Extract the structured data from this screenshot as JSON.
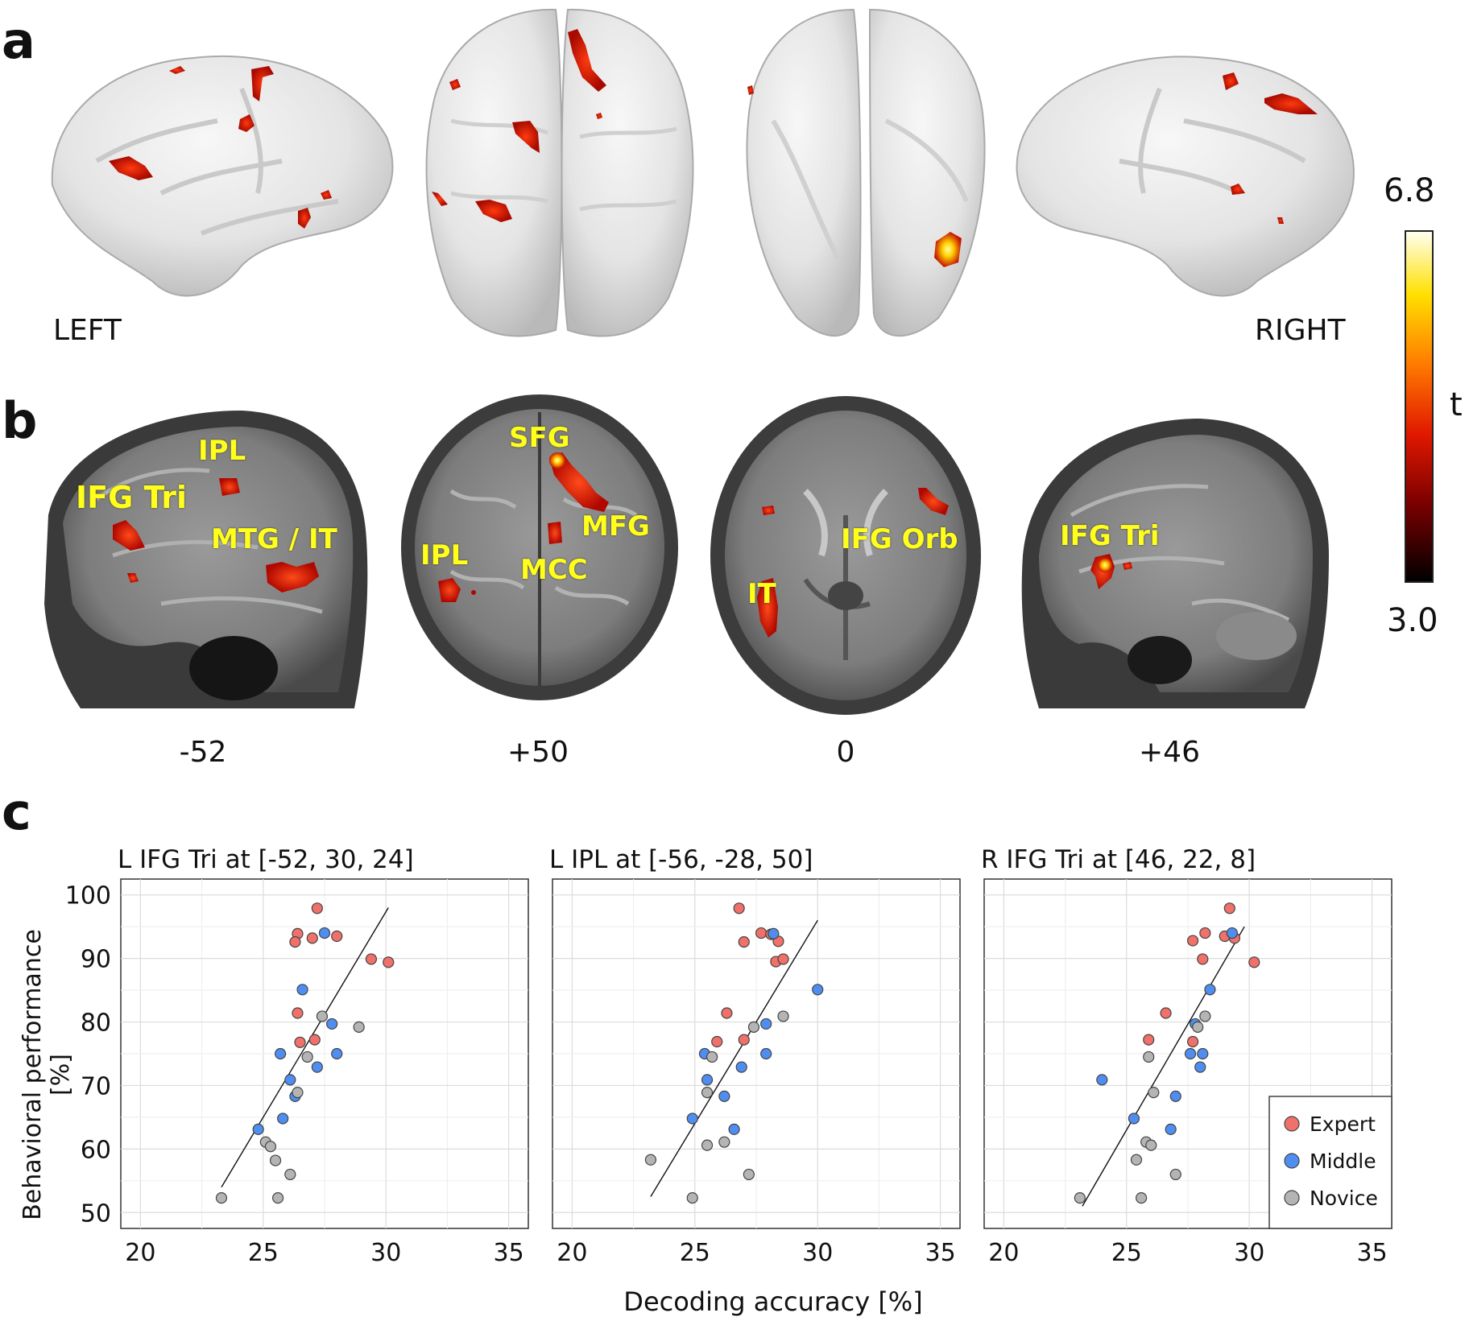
{
  "panel_a": {
    "letter": "a",
    "left_label": "LEFT",
    "right_label": "RIGHT"
  },
  "panel_b": {
    "letter": "b",
    "slices": [
      {
        "coord": "-52",
        "rois": [
          "IPL",
          "IFG Tri",
          "MTG / IT"
        ]
      },
      {
        "coord": "+50",
        "rois": [
          "SFG",
          "MFG",
          "IPL",
          "MCC"
        ]
      },
      {
        "coord": "0",
        "rois": [
          "IFG Orb",
          "IT"
        ]
      },
      {
        "coord": "+46",
        "rois": [
          "IFG Tri"
        ]
      }
    ]
  },
  "colorbar": {
    "max_label": "6.8",
    "min_label": "3.0",
    "unit_label": "t",
    "colors": [
      "#000000",
      "#8b0000",
      "#ff2200",
      "#ff9900",
      "#ffff00",
      "#ffffee"
    ]
  },
  "panel_c": {
    "letter": "c",
    "ylabel": "Behavioral performance [%]",
    "xlabel": "Decoding accuracy [%]",
    "legend": [
      "Expert",
      "Middle",
      "Novice"
    ]
  },
  "chart_data": [
    {
      "type": "scatter",
      "title": "L IFG Tri at [-52, 30, 24]",
      "xlim": [
        19.2,
        35.8
      ],
      "ylim": [
        47.5,
        102.5
      ],
      "xticks": [
        20,
        25,
        30,
        35
      ],
      "yticks": [
        50,
        60,
        70,
        80,
        90,
        100
      ],
      "fit": [
        [
          23.3,
          54.0
        ],
        [
          30.1,
          98.0
        ]
      ],
      "series": [
        {
          "name": "Expert",
          "color": "#f0706a",
          "points": [
            [
              27.2,
              97.9
            ],
            [
              26.4,
              93.9
            ],
            [
              26.3,
              92.6
            ],
            [
              27.0,
              93.2
            ],
            [
              28.0,
              93.5
            ],
            [
              29.4,
              89.9
            ],
            [
              30.1,
              89.4
            ],
            [
              26.4,
              81.4
            ],
            [
              26.5,
              76.8
            ],
            [
              27.1,
              77.2
            ]
          ]
        },
        {
          "name": "Middle",
          "color": "#4f8ef0",
          "points": [
            [
              27.5,
              94.0
            ],
            [
              26.6,
              85.1
            ],
            [
              27.8,
              79.7
            ],
            [
              25.7,
              75.0
            ],
            [
              28.0,
              75.0
            ],
            [
              27.2,
              72.9
            ],
            [
              26.1,
              70.9
            ],
            [
              26.3,
              68.3
            ],
            [
              25.8,
              64.8
            ],
            [
              24.8,
              63.1
            ]
          ]
        },
        {
          "name": "Novice",
          "color": "#b4b4b4",
          "points": [
            [
              27.4,
              80.9
            ],
            [
              28.9,
              79.2
            ],
            [
              26.8,
              74.5
            ],
            [
              26.4,
              68.9
            ],
            [
              25.1,
              61.1
            ],
            [
              25.3,
              60.4
            ],
            [
              25.5,
              58.2
            ],
            [
              26.1,
              56.0
            ],
            [
              23.3,
              52.3
            ],
            [
              25.6,
              52.3
            ]
          ]
        }
      ]
    },
    {
      "type": "scatter",
      "title": "L IPL at [-56, -28, 50]",
      "xlim": [
        19.2,
        35.8
      ],
      "ylim": [
        47.5,
        102.5
      ],
      "xticks": [
        20,
        25,
        30,
        35
      ],
      "yticks": [
        50,
        60,
        70,
        80,
        90,
        100
      ],
      "fit": [
        [
          23.2,
          52.5
        ],
        [
          30.0,
          96.0
        ]
      ],
      "series": [
        {
          "name": "Expert",
          "color": "#f0706a",
          "points": [
            [
              26.8,
              97.9
            ],
            [
              27.7,
              94.0
            ],
            [
              28.1,
              93.8
            ],
            [
              28.4,
              92.7
            ],
            [
              27.0,
              92.6
            ],
            [
              28.3,
              89.5
            ],
            [
              28.6,
              89.9
            ],
            [
              26.3,
              81.4
            ],
            [
              27.0,
              77.2
            ],
            [
              25.9,
              76.9
            ]
          ]
        },
        {
          "name": "Middle",
          "color": "#4f8ef0",
          "points": [
            [
              28.2,
              93.9
            ],
            [
              30.0,
              85.1
            ],
            [
              27.9,
              79.7
            ],
            [
              25.4,
              75.0
            ],
            [
              27.9,
              75.0
            ],
            [
              26.9,
              72.9
            ],
            [
              25.5,
              70.9
            ],
            [
              26.2,
              68.3
            ],
            [
              24.9,
              64.8
            ],
            [
              26.6,
              63.1
            ]
          ]
        },
        {
          "name": "Novice",
          "color": "#b4b4b4",
          "points": [
            [
              28.6,
              80.9
            ],
            [
              27.4,
              79.2
            ],
            [
              25.7,
              74.5
            ],
            [
              25.5,
              68.9
            ],
            [
              25.5,
              60.6
            ],
            [
              26.2,
              61.1
            ],
            [
              23.2,
              58.3
            ],
            [
              27.2,
              56.0
            ],
            [
              24.9,
              52.3
            ]
          ]
        }
      ]
    },
    {
      "type": "scatter",
      "title": "R IFG Tri at [46, 22, 8]",
      "xlim": [
        19.2,
        35.8
      ],
      "ylim": [
        47.5,
        102.5
      ],
      "xticks": [
        20,
        25,
        30,
        35
      ],
      "yticks": [
        50,
        60,
        70,
        80,
        90,
        100
      ],
      "fit": [
        [
          23.2,
          51.0
        ],
        [
          29.8,
          95.0
        ]
      ],
      "series": [
        {
          "name": "Expert",
          "color": "#f0706a",
          "points": [
            [
              29.2,
              97.9
            ],
            [
              28.2,
              94.0
            ],
            [
              29.0,
              93.5
            ],
            [
              27.7,
              92.8
            ],
            [
              29.4,
              93.2
            ],
            [
              30.2,
              89.4
            ],
            [
              28.1,
              89.9
            ],
            [
              26.6,
              81.4
            ],
            [
              27.7,
              76.9
            ],
            [
              25.9,
              77.2
            ]
          ]
        },
        {
          "name": "Middle",
          "color": "#4f8ef0",
          "points": [
            [
              29.3,
              94.0
            ],
            [
              28.4,
              85.1
            ],
            [
              27.8,
              79.7
            ],
            [
              27.6,
              75.0
            ],
            [
              28.1,
              75.0
            ],
            [
              28.0,
              72.9
            ],
            [
              24.0,
              70.9
            ],
            [
              27.0,
              68.3
            ],
            [
              25.3,
              64.8
            ],
            [
              26.8,
              63.1
            ]
          ]
        },
        {
          "name": "Novice",
          "color": "#b4b4b4",
          "points": [
            [
              28.2,
              80.9
            ],
            [
              27.9,
              79.2
            ],
            [
              25.9,
              74.5
            ],
            [
              26.1,
              68.9
            ],
            [
              25.8,
              61.1
            ],
            [
              26.0,
              60.6
            ],
            [
              25.4,
              58.3
            ],
            [
              27.0,
              56.0
            ],
            [
              23.1,
              52.3
            ],
            [
              25.6,
              52.3
            ]
          ]
        }
      ]
    }
  ]
}
